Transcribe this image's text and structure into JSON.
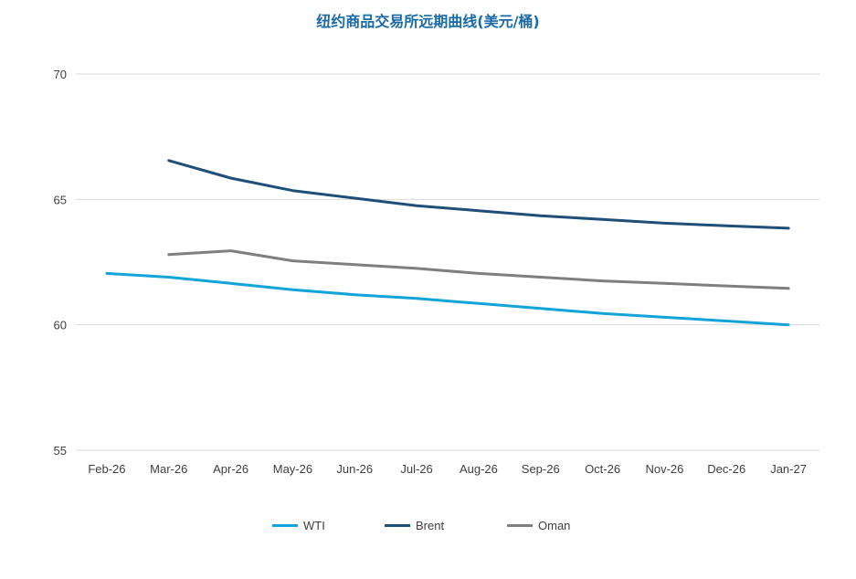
{
  "chart_data": {
    "type": "line",
    "title": "纽约商品交易所远期曲线(美元/桶)",
    "xlabel": "",
    "ylabel": "",
    "ylim": [
      55,
      70
    ],
    "yticks": [
      55,
      60,
      65,
      70
    ],
    "grid": true,
    "legend_position": "bottom",
    "categories": [
      "Feb-26",
      "Mar-26",
      "Apr-26",
      "May-26",
      "Jun-26",
      "Jul-26",
      "Aug-26",
      "Sep-26",
      "Oct-26",
      "Nov-26",
      "Dec-26",
      "Jan-27"
    ],
    "series": [
      {
        "name": "WTI",
        "color": "#12a3d9",
        "values": [
          62.05,
          61.9,
          61.65,
          61.4,
          61.2,
          61.05,
          60.85,
          60.65,
          60.45,
          60.3,
          60.15,
          60.0
        ]
      },
      {
        "name": "Brent",
        "color": "#1f4e79",
        "values": [
          null,
          66.55,
          65.85,
          65.35,
          65.05,
          64.75,
          64.55,
          64.35,
          64.2,
          64.05,
          63.95,
          63.85
        ]
      },
      {
        "name": "Oman",
        "color": "#7f7f7f",
        "values": [
          null,
          62.8,
          62.95,
          62.55,
          62.4,
          62.25,
          62.05,
          61.9,
          61.75,
          61.65,
          61.55,
          61.45
        ]
      }
    ]
  }
}
